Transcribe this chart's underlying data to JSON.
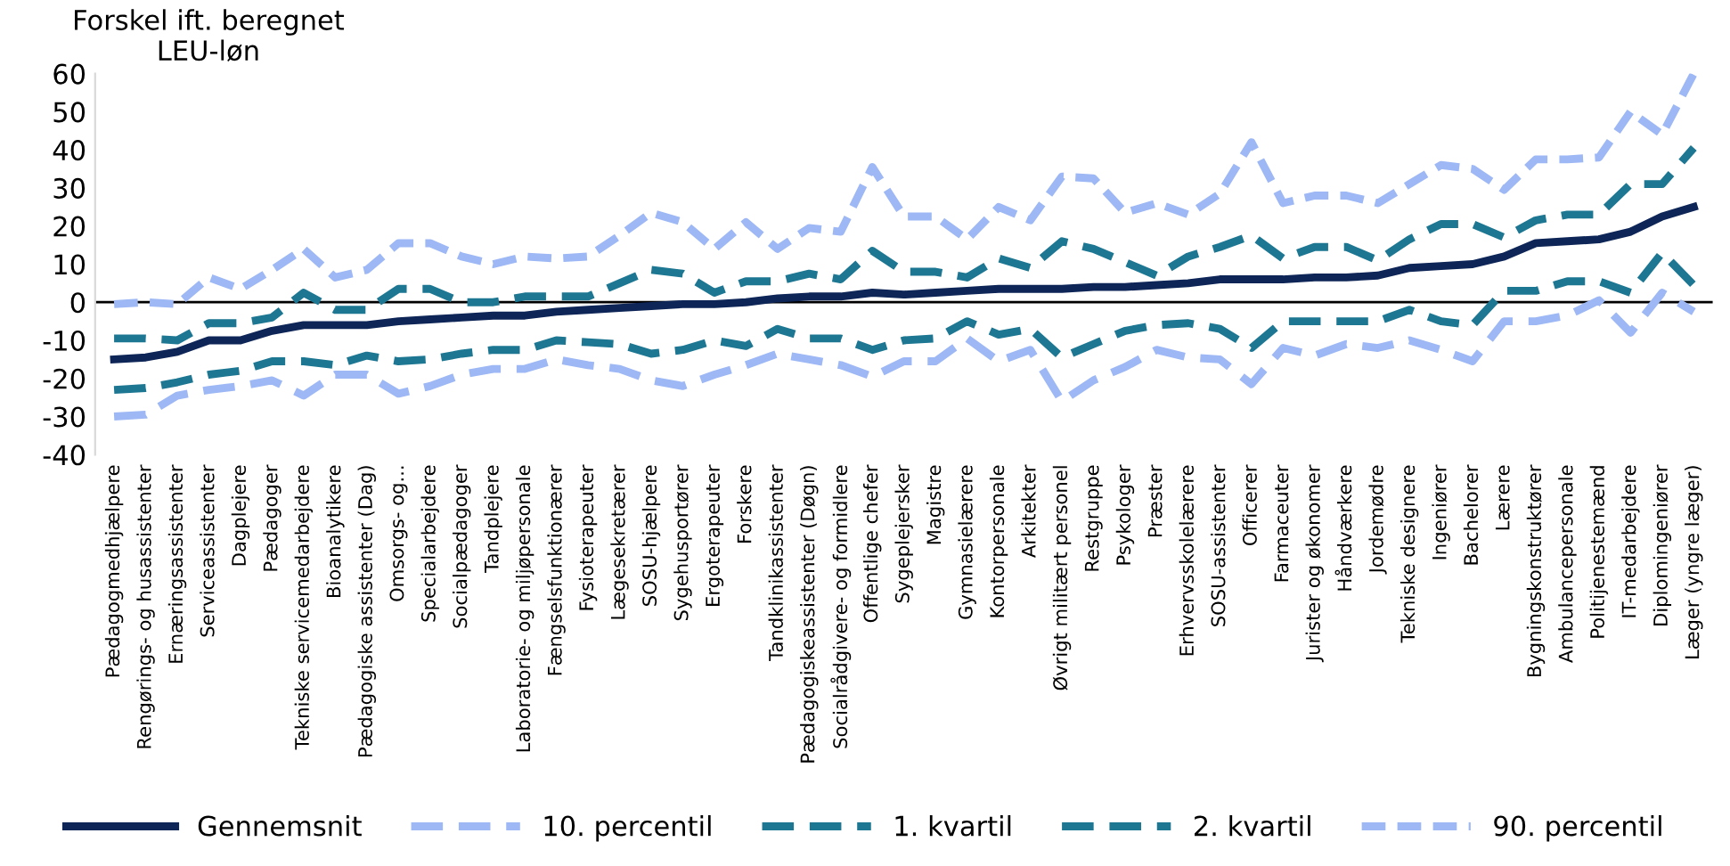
{
  "chart_data": {
    "type": "line",
    "ylabel": "Forskel ift. beregnet\nLEU-løn",
    "categories": [
      "Pædagogmedhjælpere",
      "Rengørings- og husassistenter",
      "Ernæringsassistenter",
      "Serviceassistenter",
      "Dagplejere",
      "Pædagoger",
      "Tekniske servicemedarbejdere",
      "Bioanalytikere",
      "Pædagogiske assistenter (Dag)",
      "Omsorgs- og...",
      "Specialarbejdere",
      "Socialpædagoger",
      "Tandplejere",
      "Laboratorie- og miljøpersonale",
      "Fængselsfunktionærer",
      "Fysioterapeuter",
      "Lægesekretærer",
      "SOSU-hjælpere",
      "Sygehusportører",
      "Ergoterapeuter",
      "Forskere",
      "Tandklinikassistenter",
      "Pædagogiskeassistenter (Døgn)",
      "Socialrådgivere- og formidlere",
      "Offentlige chefer",
      "Sygeplejersker",
      "Magistre",
      "Gymnasielærere",
      "Kontorpersonale",
      "Arkitekter",
      "Øvrigt militært personel",
      "Restgruppe",
      "Psykologer",
      "Præster",
      "Erhvervsskolelærere",
      "SOSU-assistenter",
      "Officerer",
      "Farmaceuter",
      "Jurister og økonomer",
      "Håndværkere",
      "Jordemødre",
      "Tekniske designere",
      "Ingeniører",
      "Bachelorer",
      "Lærere",
      "Bygningskonstruktører",
      "Ambulancepersonale",
      "Politijenestemænd",
      "IT-medarbejdere",
      "Diplomingeniører",
      "Læger (yngre læger)"
    ],
    "series": [
      {
        "name": "Gennemsnit",
        "color": "#0d2557",
        "line_style": "solid",
        "values": [
          -15,
          -14.5,
          -13,
          -10,
          -10,
          -7.5,
          -6,
          -6,
          -6,
          -5,
          -4.5,
          -4,
          -3.5,
          -3.5,
          -2.5,
          -2,
          -1.5,
          -1,
          -0.5,
          -0.5,
          0,
          1,
          1.5,
          1.5,
          2.5,
          2,
          2.5,
          3,
          3.5,
          3.5,
          3.5,
          4,
          4,
          4.5,
          5,
          6,
          6,
          6,
          6.5,
          6.5,
          7,
          9,
          9.5,
          10,
          12,
          15.5,
          16,
          16.5,
          18.5,
          22.5,
          25
        ]
      },
      {
        "name": "10. percentil",
        "color": "#9db8f5",
        "line_style": "dashed",
        "values": [
          -30,
          -29.5,
          -24.5,
          -23,
          -22,
          -20.5,
          -24.5,
          -19,
          -19,
          -24,
          -22,
          -19,
          -17.5,
          -17.5,
          -15,
          -16.5,
          -17.5,
          -20.5,
          -22,
          -19,
          -16.5,
          -13.5,
          -15,
          -16.5,
          -19.5,
          -15.5,
          -15.5,
          -9.5,
          -15.5,
          -12.5,
          -26,
          -20.5,
          -17,
          -12.5,
          -14.5,
          -15,
          -21.5,
          -12,
          -14,
          -11,
          -12,
          -10,
          -12.5,
          -15.5,
          -5,
          -5,
          -3.5,
          0.5,
          -8,
          2.5,
          -2.5
        ]
      },
      {
        "name": "1. kvartil",
        "color": "#1d7792",
        "line_style": "dashed",
        "values": [
          -23,
          -22.5,
          -21,
          -19,
          -18,
          -15.5,
          -15.5,
          -16.5,
          -14,
          -15.5,
          -15,
          -13.5,
          -12.5,
          -12.5,
          -10,
          -10.5,
          -11,
          -13.5,
          -12.5,
          -10,
          -11.5,
          -7,
          -9.5,
          -9.5,
          -12.5,
          -10,
          -9.5,
          -5,
          -8.5,
          -7,
          -14.5,
          -11,
          -7.5,
          -6,
          -5.5,
          -7,
          -12,
          -5,
          -5,
          -5,
          -5,
          -2,
          -5,
          -6,
          3,
          3,
          5.5,
          5.5,
          2.5,
          13,
          4.5
        ]
      },
      {
        "name": "2. kvartil",
        "color": "#1d7792",
        "line_style": "dashed",
        "values": [
          -9.5,
          -9.5,
          -10,
          -5.5,
          -5.5,
          -4,
          2.5,
          -2,
          -2,
          3.5,
          3.5,
          0,
          0,
          1.5,
          1.5,
          1.5,
          5,
          8.5,
          7.5,
          2.5,
          5.5,
          5.5,
          7.5,
          6,
          13.5,
          8,
          8,
          6.5,
          11.5,
          9,
          16,
          14,
          10.5,
          7,
          12,
          14.5,
          17.5,
          11.5,
          14.5,
          14.5,
          11,
          16.5,
          20.5,
          20.5,
          17,
          21.5,
          23,
          23,
          31,
          31,
          40.5
        ]
      },
      {
        "name": "90. percentil",
        "color": "#9db8f5",
        "line_style": "dotted",
        "values": [
          -0.5,
          0,
          -0.5,
          6.5,
          3.5,
          8.5,
          14,
          6.5,
          8.5,
          15.5,
          15.5,
          12,
          10,
          12,
          11.5,
          12,
          17.5,
          23.5,
          21,
          14,
          21,
          14,
          19.5,
          18.5,
          35.5,
          22.5,
          22.5,
          16.5,
          25,
          21.5,
          33,
          32.5,
          23.5,
          26,
          23,
          28.5,
          42,
          26,
          28,
          28,
          26,
          31,
          36,
          35,
          29.5,
          37.5,
          37.5,
          38,
          50,
          44,
          60
        ]
      }
    ],
    "ylim": [
      -40,
      60
    ],
    "yticks": [
      -40,
      -30,
      -20,
      -10,
      0,
      10,
      20,
      30,
      40,
      50,
      60
    ],
    "ref_lines": [
      {
        "axis": "y",
        "value": 0,
        "color": "#000000"
      }
    ],
    "legend": "bottom",
    "grid": false,
    "marker": "none"
  }
}
